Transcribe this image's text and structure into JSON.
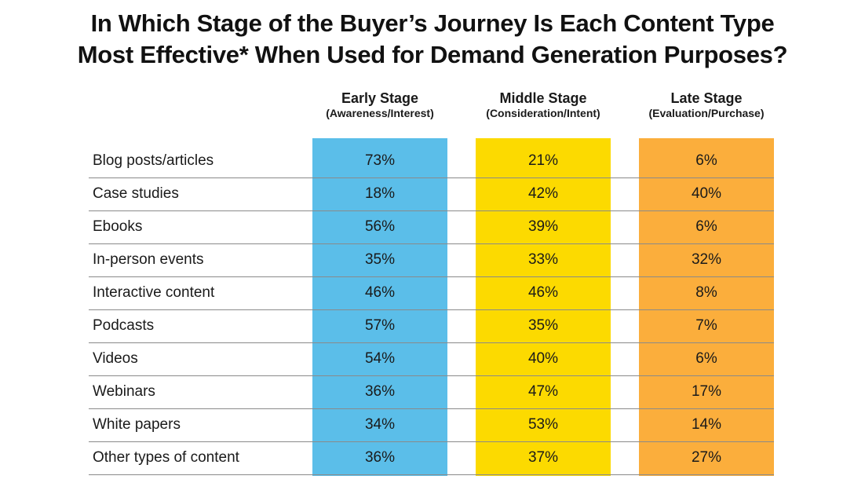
{
  "title_lines": [
    "In Which Stage of the Buyer’s Journey Is Each Content Type",
    "Most Effective* When Used for Demand Generation Purposes?"
  ],
  "chart_data": {
    "type": "table",
    "columns": [
      {
        "name": "Early Stage",
        "sub": "(Awareness/Interest)",
        "color": "#5BBEE9"
      },
      {
        "name": "Middle Stage",
        "sub": "(Consideration/Intent)",
        "color": "#FCDA00"
      },
      {
        "name": "Late Stage",
        "sub": "(Evaluation/Purchase)",
        "color": "#FBAE3C"
      }
    ],
    "rows": [
      {
        "label": "Blog posts/articles",
        "values": [
          "73%",
          "21%",
          "6%"
        ]
      },
      {
        "label": "Case studies",
        "values": [
          "18%",
          "42%",
          "40%"
        ]
      },
      {
        "label": "Ebooks",
        "values": [
          "56%",
          "39%",
          "6%"
        ]
      },
      {
        "label": "In-person events",
        "values": [
          "35%",
          "33%",
          "32%"
        ]
      },
      {
        "label": "Interactive content",
        "values": [
          "46%",
          "46%",
          "8%"
        ]
      },
      {
        "label": "Podcasts",
        "values": [
          "57%",
          "35%",
          "7%"
        ]
      },
      {
        "label": "Videos",
        "values": [
          "54%",
          "40%",
          "6%"
        ]
      },
      {
        "label": "Webinars",
        "values": [
          "36%",
          "47%",
          "17%"
        ]
      },
      {
        "label": "White papers",
        "values": [
          "34%",
          "53%",
          "14%"
        ]
      },
      {
        "label": "Other types of content",
        "values": [
          "36%",
          "37%",
          "27%"
        ]
      }
    ]
  }
}
